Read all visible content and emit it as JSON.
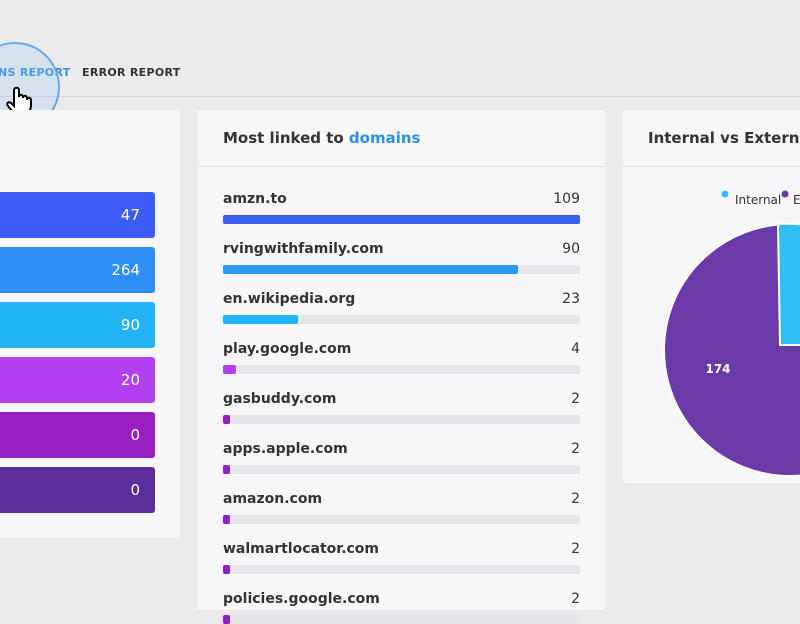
{
  "tabs": [
    "NS REPORT",
    "ERROR REPORT"
  ],
  "summary": {
    "values": [
      47,
      264,
      90,
      20,
      0,
      0
    ],
    "colors": [
      "#3d5cf5",
      "#2f8ef5",
      "#22b3f5",
      "#b23ff0",
      "#9a1fc2",
      "#5a2f9c"
    ]
  },
  "domains": {
    "title": "Most linked to ",
    "title_highlight": "domains",
    "rows": [
      {
        "name": "amzn.to",
        "value": 109,
        "color": "#3a5ff0"
      },
      {
        "name": "rvingwithfamily.com",
        "value": 90,
        "color": "#2d9bf0"
      },
      {
        "name": "en.wikipedia.org",
        "value": 23,
        "color": "#22b5f5"
      },
      {
        "name": "play.google.com",
        "value": 4,
        "color": "#b040f0"
      },
      {
        "name": "gasbuddy.com",
        "value": 2,
        "color": "#9020c0"
      },
      {
        "name": "apps.apple.com",
        "value": 2,
        "color": "#9020c0"
      },
      {
        "name": "amazon.com",
        "value": 2,
        "color": "#9020c0"
      },
      {
        "name": "walmartlocator.com",
        "value": 2,
        "color": "#9020c0"
      },
      {
        "name": "policies.google.com",
        "value": 2,
        "color": "#9020c0"
      }
    ]
  },
  "links": {
    "title": "Internal vs External li",
    "legend": [
      "Internal",
      "E"
    ],
    "pie_label": 174
  }
}
